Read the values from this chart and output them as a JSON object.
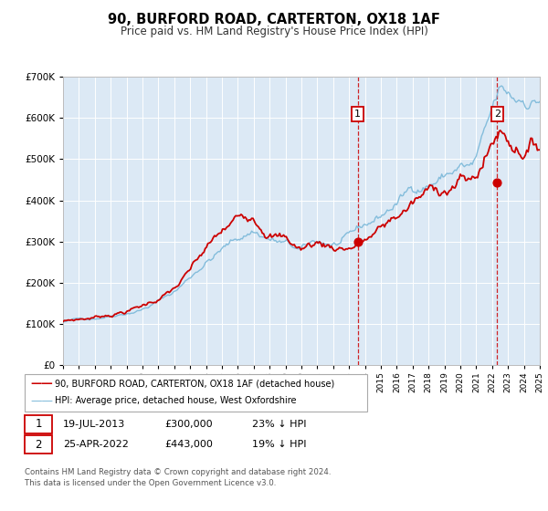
{
  "title": "90, BURFORD ROAD, CARTERTON, OX18 1AF",
  "subtitle": "Price paid vs. HM Land Registry's House Price Index (HPI)",
  "background_color": "#ffffff",
  "plot_bg_color": "#dce9f5",
  "hpi_color": "#7ab8d9",
  "price_color": "#cc0000",
  "ylim": [
    0,
    700000
  ],
  "yticks": [
    0,
    100000,
    200000,
    300000,
    400000,
    500000,
    600000,
    700000
  ],
  "sale1_year": 2013.54,
  "sale1_price": 300000,
  "sale2_year": 2022.32,
  "sale2_price": 443000,
  "legend_label1": "90, BURFORD ROAD, CARTERTON, OX18 1AF (detached house)",
  "legend_label2": "HPI: Average price, detached house, West Oxfordshire",
  "footer1": "Contains HM Land Registry data © Crown copyright and database right 2024.",
  "footer2": "This data is licensed under the Open Government Licence v3.0."
}
